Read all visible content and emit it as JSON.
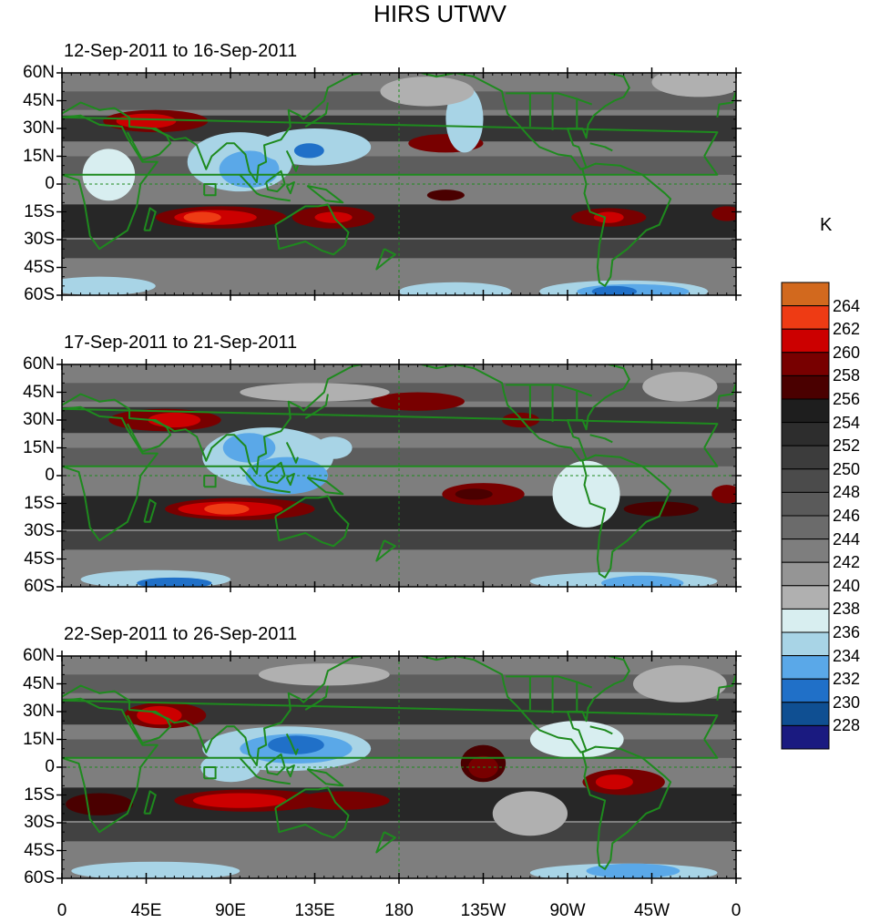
{
  "title": "HIRS UTWV",
  "panels": [
    {
      "label": "12-Sep-2011 to 16-Sep-2011"
    },
    {
      "label": "17-Sep-2011 to 21-Sep-2011"
    },
    {
      "label": "22-Sep-2011 to 26-Sep-2011"
    }
  ],
  "lat_ticks": [
    "60N",
    "45N",
    "30N",
    "15N",
    "0",
    "15S",
    "30S",
    "45S",
    "60S"
  ],
  "lon_ticks": [
    "0",
    "45E",
    "90E",
    "135E",
    "180",
    "135W",
    "90W",
    "45W",
    "0"
  ],
  "colorbar": {
    "unit": "K",
    "labels": [
      "264",
      "262",
      "260",
      "258",
      "256",
      "254",
      "252",
      "250",
      "248",
      "246",
      "244",
      "242",
      "240",
      "238",
      "236",
      "234",
      "232",
      "230",
      "228"
    ],
    "colors": [
      "#d2691e",
      "#ee3b14",
      "#cc0000",
      "#780000",
      "#4a0000",
      "#1e1e1e",
      "#2d2d2d",
      "#3c3c3c",
      "#4b4b4b",
      "#5a5a5a",
      "#6b6b6b",
      "#7e7e7e",
      "#959595",
      "#b0b0b0",
      "#d8eef0",
      "#a8d4e6",
      "#5aa8e8",
      "#2070c8",
      "#0f4f92",
      "#1a1a80"
    ]
  },
  "coastline_color": "#1e8a1e"
}
